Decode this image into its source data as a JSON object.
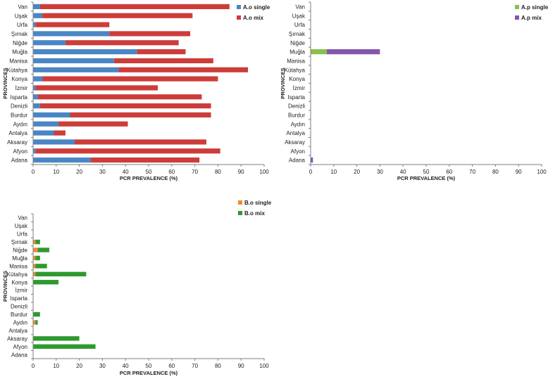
{
  "colors": {
    "ao_single": "#4a86c5",
    "ao_mix": "#cc3d3a",
    "ap_single": "#8bbf4e",
    "ap_mix": "#8456ad",
    "bo_single": "#f28a2e",
    "bo_mix": "#2e9a2e",
    "axis": "#7f7f7f"
  },
  "chart_data": [
    {
      "id": "ao",
      "type": "bar",
      "orientation": "horizontal",
      "stacked": true,
      "categories": [
        "Adana",
        "Afyon",
        "Aksaray",
        "Antalya",
        "Aydın",
        "Burdur",
        "Denizli",
        "Isparta",
        "İzmir",
        "Konya",
        "Kütahya",
        "Manisa",
        "Muğla",
        "Niğde",
        "Şırnak",
        "Urfa",
        "Uşak",
        "Van"
      ],
      "series": [
        {
          "name": "A.o single",
          "color_key": "ao_single",
          "values": [
            25,
            1,
            18,
            9,
            11,
            16,
            3,
            2,
            1,
            4,
            37,
            35,
            45,
            14,
            33,
            1,
            4,
            3
          ]
        },
        {
          "name": "A.o mix",
          "color_key": "ao_mix",
          "values": [
            47,
            80,
            57,
            5,
            30,
            61,
            74,
            71,
            53,
            76,
            56,
            43,
            21,
            49,
            35,
            32,
            65,
            82
          ]
        }
      ],
      "xlabel": "PCR PREVALENCE (%)",
      "ylabel": "PROVINCES",
      "xlim": [
        0,
        100
      ],
      "xticks": [
        0,
        10,
        20,
        30,
        40,
        50,
        60,
        70,
        80,
        90,
        100
      ],
      "legend": "top-right"
    },
    {
      "id": "ap",
      "type": "bar",
      "orientation": "horizontal",
      "stacked": true,
      "categories": [
        "Adana",
        "Afyon",
        "Aksaray",
        "Antalya",
        "Aydın",
        "Burdur",
        "Denizli",
        "Isparta",
        "İzmir",
        "Konya",
        "Kütahya",
        "Manisa",
        "Muğla",
        "Niğde",
        "Şırnak",
        "Urfa",
        "Uşak",
        "Van"
      ],
      "series": [
        {
          "name": "A.p single",
          "color_key": "ap_single",
          "values": [
            0,
            0,
            0,
            0,
            0,
            0,
            0,
            0,
            0,
            0,
            0,
            0,
            7,
            0,
            0,
            0,
            0,
            0
          ]
        },
        {
          "name": "A.p mix",
          "color_key": "ap_mix",
          "values": [
            1,
            0,
            0,
            0,
            0,
            0,
            0,
            0,
            0,
            0,
            0,
            0,
            23,
            0,
            0,
            0,
            0,
            0
          ]
        }
      ],
      "xlabel": "PCR PREVALENCE (%)",
      "ylabel": "PROVINCES",
      "xlim": [
        0,
        100
      ],
      "xticks": [
        0,
        10,
        20,
        30,
        40,
        50,
        60,
        70,
        80,
        90,
        100
      ],
      "legend": "top-right"
    },
    {
      "id": "bo",
      "type": "bar",
      "orientation": "horizontal",
      "stacked": true,
      "categories": [
        "Adana",
        "Afyon",
        "Aksaray",
        "Antalya",
        "Aydın",
        "Burdur",
        "Denizli",
        "Isparta",
        "İzmir",
        "Konya",
        "Kütahya",
        "Manisa",
        "Muğla",
        "Niğde",
        "Şırnak",
        "Urfa",
        "Uşak",
        "Van"
      ],
      "series": [
        {
          "name": "B.o single",
          "color_key": "bo_single",
          "values": [
            0,
            0,
            0,
            0,
            1,
            0,
            0,
            0,
            0,
            0,
            1,
            1,
            1,
            2,
            1,
            0,
            0,
            0
          ]
        },
        {
          "name": "B.o mix",
          "color_key": "bo_mix",
          "values": [
            0,
            27,
            20,
            0,
            1,
            3,
            0,
            0,
            0,
            11,
            22,
            5,
            2,
            5,
            2,
            0,
            0,
            0
          ]
        }
      ],
      "xlabel": "PCR PREVALENCE (%)",
      "ylabel": "PROVINCES",
      "xlim": [
        0,
        100
      ],
      "xticks": [
        0,
        10,
        20,
        30,
        40,
        50,
        60,
        70,
        80,
        90,
        100
      ],
      "legend": "top-right"
    }
  ]
}
